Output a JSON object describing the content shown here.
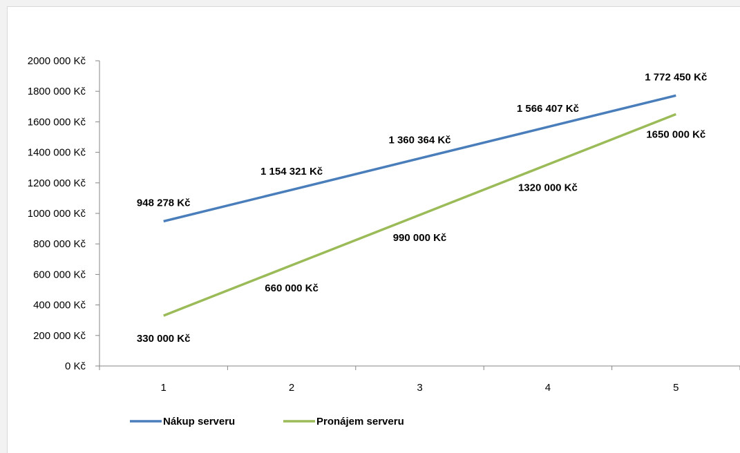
{
  "chart_data": {
    "type": "line",
    "x": [
      1,
      2,
      3,
      4,
      5
    ],
    "ylim": [
      0,
      2000000
    ],
    "y_ticks": [
      "0 Kč",
      "200 000 Kč",
      "400 000 Kč",
      "600 000 Kč",
      "800 000 Kč",
      "1000 000 Kč",
      "1200 000 Kč",
      "1400 000 Kč",
      "1600 000 Kč",
      "1800 000 Kč",
      "2000 000 Kč"
    ],
    "x_ticks": [
      "1",
      "2",
      "3",
      "4",
      "5"
    ],
    "grid": false,
    "legend_position": "bottom-left",
    "series": [
      {
        "name": "Nákup serveru",
        "color": "#4a7ebb",
        "values": [
          948278,
          1154321,
          1360364,
          1566407,
          1772450
        ],
        "labels": [
          "948 278 Kč",
          "1 154 321 Kč",
          "1 360 364 Kč",
          "1 566 407 Kč",
          "1 772 450 Kč"
        ]
      },
      {
        "name": "Pronájem serveru",
        "color": "#9bbb59",
        "values": [
          330000,
          660000,
          990000,
          1320000,
          1650000
        ],
        "labels": [
          "330 000 Kč",
          "660 000 Kč",
          "990 000 Kč",
          "1320 000 Kč",
          "1650 000 Kč"
        ]
      }
    ]
  }
}
